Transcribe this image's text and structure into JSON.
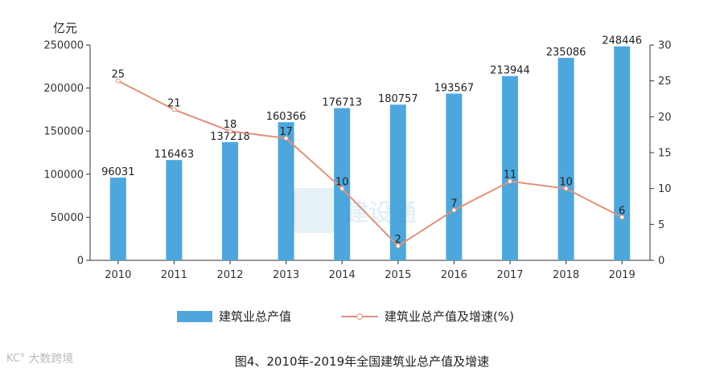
{
  "chart_data": {
    "type": "bar+line",
    "categories": [
      "2010",
      "2011",
      "2012",
      "2013",
      "2014",
      "2015",
      "2016",
      "2017",
      "2018",
      "2019"
    ],
    "series": [
      {
        "name": "建筑业总产值",
        "type": "bar",
        "axis": "left",
        "color": "#4ea7dc",
        "values": [
          96031,
          116463,
          137218,
          160366,
          176713,
          180757,
          193567,
          213944,
          235086,
          248446
        ]
      },
      {
        "name": "建筑业总产值及增速(%)",
        "type": "line",
        "axis": "right",
        "color": "#e0917a",
        "values": [
          25,
          21,
          18,
          17,
          10,
          2,
          7,
          11,
          10,
          6
        ]
      }
    ],
    "left_axis": {
      "unit_label": "亿元",
      "ylim": [
        0,
        250000
      ],
      "ticks": [
        "0",
        "50000",
        "100000",
        "150000",
        "200000",
        "250000"
      ]
    },
    "right_axis": {
      "ylim": [
        0,
        30
      ],
      "ticks": [
        "0",
        "5",
        "10",
        "15",
        "20",
        "25",
        "30"
      ]
    },
    "grid": false,
    "legend_position": "bottom"
  },
  "caption": "图4、2010年-2019年全国建筑业总产值及增速",
  "branding": {
    "icon_text": "KC°",
    "text": "大数跨境"
  },
  "watermark": {
    "text": "建设通"
  }
}
